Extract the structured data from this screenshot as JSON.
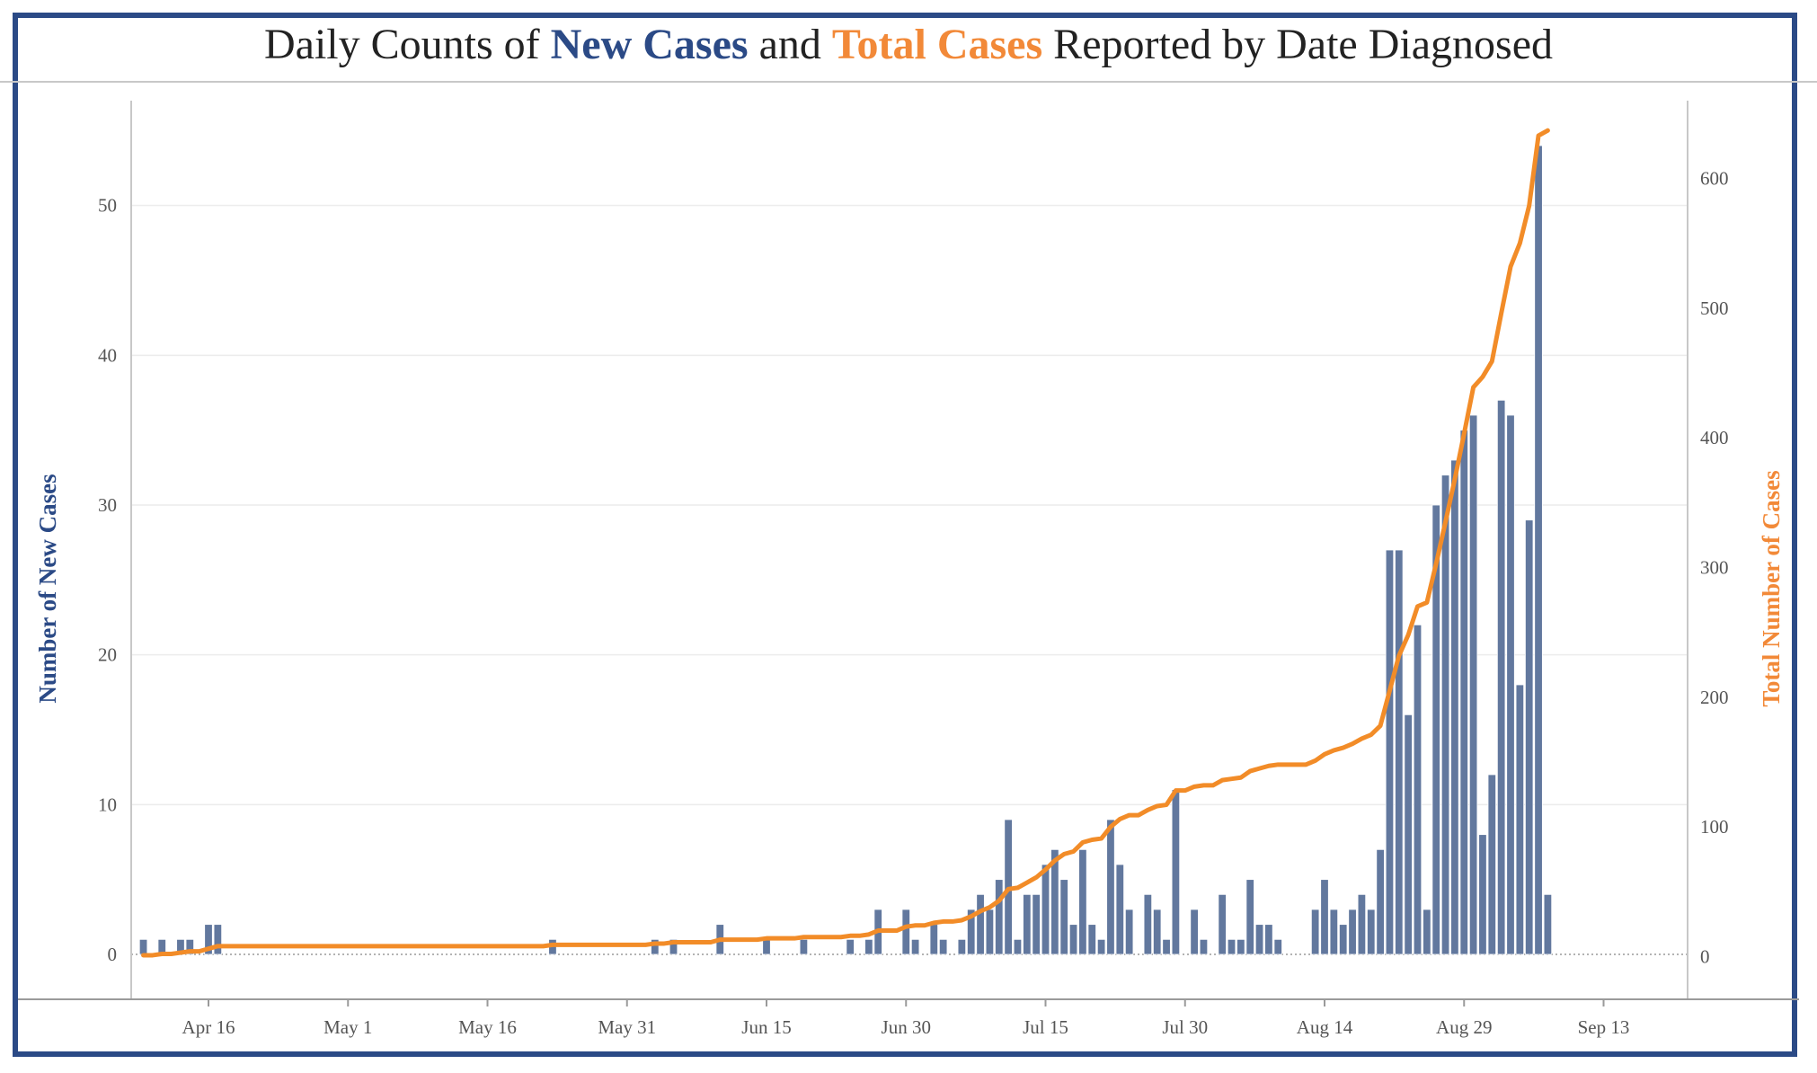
{
  "title": {
    "prefix": "Daily Counts of ",
    "new_cases": "New Cases",
    "middle": " and ",
    "total_cases": "Total Cases",
    "suffix": " Reported by Date Diagnosed"
  },
  "colors": {
    "bar": "#62789e",
    "line": "#f28c28",
    "new_cases_accent": "#2b4a86",
    "total_cases_accent": "#f28938",
    "frame": "#2b4a86"
  },
  "chart_data": {
    "type": "bar+line",
    "x_start_date": "Apr 9",
    "x_ticks": [
      "Apr 16",
      "May 1",
      "May 16",
      "May 31",
      "Jun 15",
      "Jun 30",
      "Jul 15",
      "Jul 30",
      "Aug 14",
      "Aug 29",
      "Sep 13"
    ],
    "ylabel_left": "Number of New Cases",
    "ylabel_right": "Total Number of Cases",
    "y_left_ticks": [
      0,
      10,
      20,
      30,
      40,
      50
    ],
    "y_right_ticks": [
      0,
      100,
      200,
      300,
      400,
      500,
      600
    ],
    "y_left_lim": [
      -3,
      57
    ],
    "y_right_lim": [
      -33,
      660
    ],
    "grid": true,
    "series": [
      {
        "name": "New Cases",
        "kind": "bar",
        "axis": "left",
        "values": [
          1,
          0,
          1,
          0,
          1,
          1,
          0,
          2,
          2,
          0,
          0,
          0,
          0,
          0,
          0,
          0,
          0,
          0,
          0,
          0,
          0,
          0,
          0,
          0,
          0,
          0,
          0,
          0,
          0,
          0,
          0,
          0,
          0,
          0,
          0,
          0,
          0,
          0,
          0,
          0,
          0,
          0,
          0,
          0,
          1,
          0,
          0,
          0,
          0,
          0,
          0,
          0,
          0,
          0,
          0,
          1,
          0,
          1,
          0,
          0,
          0,
          0,
          2,
          0,
          0,
          0,
          0,
          1,
          0,
          0,
          0,
          1,
          0,
          0,
          0,
          0,
          1,
          0,
          1,
          3,
          0,
          0,
          3,
          1,
          0,
          2,
          1,
          0,
          1,
          3,
          4,
          3,
          5,
          9,
          1,
          4,
          4,
          6,
          7,
          5,
          2,
          7,
          2,
          1,
          9,
          6,
          3,
          0,
          4,
          3,
          1,
          11,
          0,
          3,
          1,
          0,
          4,
          1,
          1,
          5,
          2,
          2,
          1,
          0,
          0,
          0,
          3,
          5,
          3,
          2,
          3,
          4,
          3,
          7,
          27,
          27,
          16,
          22,
          3,
          30,
          32,
          33,
          35,
          36,
          8,
          12,
          37,
          36,
          18,
          29,
          54,
          4
        ]
      },
      {
        "name": "Total Cases",
        "kind": "line",
        "axis": "right",
        "values": [
          1,
          1,
          2,
          2,
          3,
          4,
          4,
          6,
          8,
          8,
          8,
          8,
          8,
          8,
          8,
          8,
          8,
          8,
          8,
          8,
          8,
          8,
          8,
          8,
          8,
          8,
          8,
          8,
          8,
          8,
          8,
          8,
          8,
          8,
          8,
          8,
          8,
          8,
          8,
          8,
          8,
          8,
          8,
          8,
          9,
          9,
          9,
          9,
          9,
          9,
          9,
          9,
          9,
          9,
          9,
          10,
          10,
          11,
          11,
          11,
          11,
          11,
          13,
          13,
          13,
          13,
          13,
          14,
          14,
          14,
          14,
          15,
          15,
          15,
          15,
          15,
          16,
          16,
          17,
          20,
          20,
          20,
          23,
          24,
          24,
          26,
          27,
          27,
          28,
          31,
          35,
          38,
          43,
          52,
          53,
          57,
          61,
          67,
          74,
          79,
          81,
          88,
          90,
          91,
          100,
          106,
          109,
          109,
          113,
          116,
          117,
          128,
          128,
          131,
          132,
          132,
          136,
          137,
          138,
          143,
          145,
          147,
          148,
          148,
          148,
          148,
          151,
          156,
          159,
          161,
          164,
          168,
          171,
          178,
          205,
          232,
          248,
          270,
          273,
          303,
          335,
          368,
          403,
          439,
          447,
          459,
          496,
          532,
          550,
          579,
          633,
          637
        ]
      }
    ]
  }
}
